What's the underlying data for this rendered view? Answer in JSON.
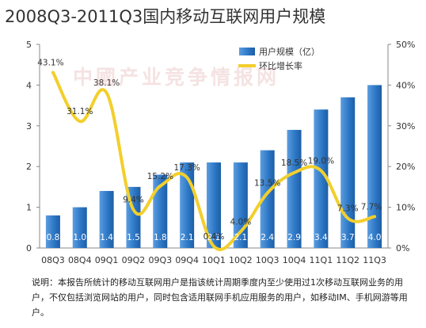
{
  "chart_data": {
    "type": "bar+line",
    "title": "2008Q3-2011Q3国内移动互联网用户规模",
    "categories": [
      "08Q3",
      "08Q4",
      "09Q1",
      "09Q2",
      "09Q3",
      "09Q4",
      "10Q1",
      "10Q2",
      "10Q3",
      "10Q4",
      "11Q1",
      "11Q2",
      "11Q3"
    ],
    "series": [
      {
        "name": "用户规模（亿）",
        "type": "bar",
        "axis": "left",
        "color": "#2e78c6",
        "values": [
          0.8,
          1.0,
          1.4,
          1.5,
          1.8,
          2.1,
          2.1,
          2.1,
          2.4,
          2.9,
          3.4,
          3.7,
          4.0
        ],
        "labels": [
          "0.8",
          "1.0",
          "1.4",
          "1.5",
          "1.8",
          "2.1",
          "2.1",
          "2.1",
          "2.4",
          "2.9",
          "3.4",
          "3.7",
          "4.0"
        ]
      },
      {
        "name": "环比增长率",
        "type": "line",
        "axis": "right",
        "color": "#f2cf2c",
        "values": [
          43.1,
          31.1,
          38.1,
          9.4,
          15.2,
          17.3,
          0.4,
          4.0,
          13.5,
          18.5,
          19.0,
          7.3,
          7.7
        ],
        "labels": [
          "43.1%",
          "31.1%",
          "38.1%",
          "9.4%",
          "15.2%",
          "17.3%",
          "0.4%",
          "4.0%",
          "13.5%",
          "18.5%",
          "19.0%",
          "7.3%",
          "7.7%"
        ]
      }
    ],
    "y_left": {
      "min": 0,
      "max": 5,
      "ticks": [
        "0",
        "1",
        "2",
        "3",
        "4",
        "5"
      ]
    },
    "y_right": {
      "min": 0,
      "max": 50,
      "ticks": [
        "0%",
        "10%",
        "20%",
        "30%",
        "40%",
        "50%"
      ]
    },
    "grid": false,
    "legend": "top-right"
  },
  "watermark": "中國产业竞争情报网",
  "note": "说明：本报告所统计的移动互联网用户是指该统计周期季度内至少使用过1次移动互联网业务的用户，不仅包括浏览网站的用户，同时包含适用联网手机应用服务的用户，如移动IM、手机网游等用户。"
}
